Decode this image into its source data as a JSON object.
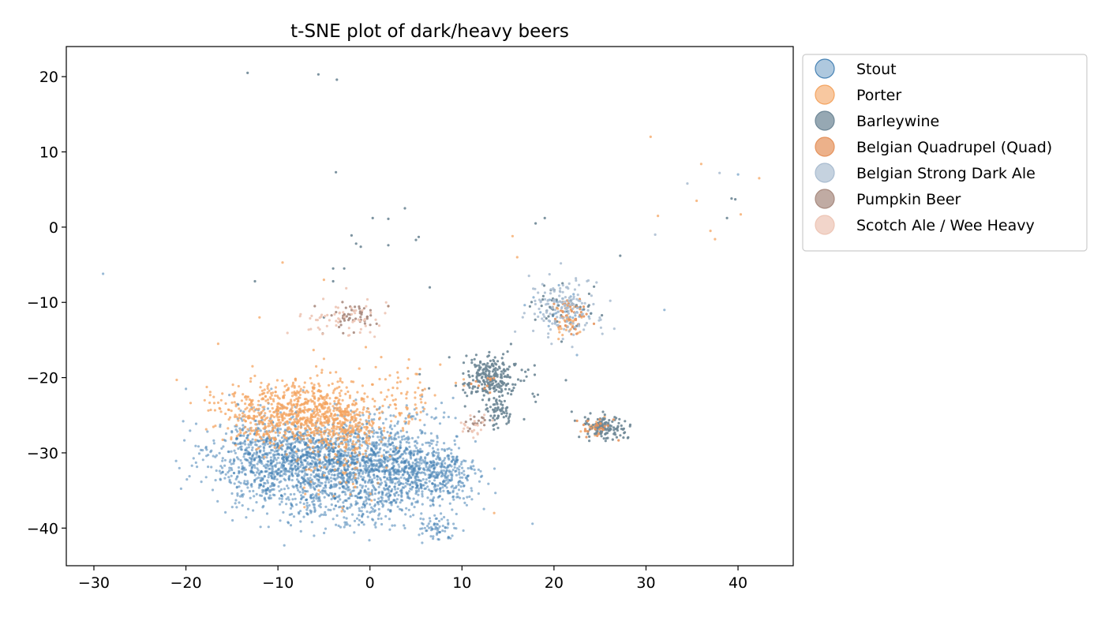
{
  "chart_data": {
    "type": "scatter",
    "title": "t-SNE plot of dark/heavy beers",
    "xlabel": "",
    "ylabel": "",
    "xlim": [
      -33,
      46
    ],
    "ylim": [
      -45,
      24
    ],
    "xticks": [
      -30,
      -20,
      -10,
      0,
      10,
      20,
      30,
      40
    ],
    "yticks": [
      20,
      10,
      0,
      -10,
      -20,
      -30,
      -40
    ],
    "grid": false,
    "legend": "outside-top-right",
    "series": [
      {
        "name": "Stout",
        "color": "#4682b4",
        "alpha": 0.55,
        "clusters": [
          {
            "cx": -8,
            "cy": -31,
            "sx": 4.5,
            "sy": 2.5,
            "n": 750
          },
          {
            "cx": -3,
            "cy": -30,
            "sx": 4,
            "sy": 2.5,
            "n": 550
          },
          {
            "cx": 2,
            "cy": -32,
            "sx": 3,
            "sy": 2.5,
            "n": 450
          },
          {
            "cx": 7,
            "cy": -33,
            "sx": 2.5,
            "sy": 2,
            "n": 380
          },
          {
            "cx": -12,
            "cy": -30,
            "sx": 2.5,
            "sy": 3,
            "n": 250
          },
          {
            "cx": 7,
            "cy": -40,
            "sx": 1,
            "sy": 0.8,
            "n": 60
          },
          {
            "cx": -4,
            "cy": -35,
            "sx": 5,
            "sy": 2.5,
            "n": 280
          },
          {
            "cx": -1,
            "cy": -37,
            "sx": 5,
            "sy": 1.8,
            "n": 150
          },
          {
            "cx": 21,
            "cy": -11,
            "sx": 1.5,
            "sy": 1.3,
            "n": 40
          },
          {
            "cx": 5,
            "cy": -26,
            "sx": 2.5,
            "sy": 2,
            "n": 50
          }
        ],
        "points": [
          [
            -29,
            -6.2
          ],
          [
            32,
            -11
          ],
          [
            40,
            7
          ],
          [
            22.5,
            -17
          ],
          [
            -20,
            -21.5
          ],
          [
            -20.3,
            -25.8
          ],
          [
            -13,
            -36
          ]
        ]
      },
      {
        "name": "Porter",
        "color": "#f4a460",
        "alpha": 0.75,
        "clusters": [
          {
            "cx": -9,
            "cy": -25,
            "sx": 3,
            "sy": 2,
            "n": 450
          },
          {
            "cx": -3,
            "cy": -26,
            "sx": 2,
            "sy": 1.8,
            "n": 280
          },
          {
            "cx": -6,
            "cy": -24,
            "sx": 4,
            "sy": 2,
            "n": 200
          },
          {
            "cx": 4.5,
            "cy": -24,
            "sx": 1.5,
            "sy": 1.5,
            "n": 40
          },
          {
            "cx": -4,
            "cy": -32,
            "sx": 3,
            "sy": 2.5,
            "n": 60
          },
          {
            "cx": -15,
            "cy": -24,
            "sx": 2,
            "sy": 2,
            "n": 40
          },
          {
            "cx": 21.5,
            "cy": -12.5,
            "sx": 0.8,
            "sy": 1.2,
            "n": 35
          },
          {
            "cx": 24.5,
            "cy": -26.5,
            "sx": 0.8,
            "sy": 0.6,
            "n": 20
          },
          {
            "cx": 0,
            "cy": -21,
            "sx": 4,
            "sy": 2,
            "n": 50
          }
        ],
        "points": [
          [
            30.5,
            12
          ],
          [
            36,
            8.4
          ],
          [
            42.3,
            6.5
          ],
          [
            35.5,
            3.5
          ],
          [
            31.3,
            1.5
          ],
          [
            40.3,
            1.7
          ],
          [
            37,
            -0.5
          ],
          [
            37.5,
            -1.6
          ],
          [
            15.5,
            -1.2
          ],
          [
            16,
            -4
          ],
          [
            -9.5,
            -4.7
          ],
          [
            -5,
            -7
          ],
          [
            -12,
            -12
          ],
          [
            -21,
            -20.3
          ],
          [
            -16.5,
            -15.5
          ],
          [
            -5,
            -17.5
          ],
          [
            13.5,
            -38
          ],
          [
            23,
            -12
          ],
          [
            2,
            -10.5
          ]
        ]
      },
      {
        "name": "Barleywine",
        "color": "#6e8796",
        "alpha": 0.9,
        "clusters": [
          {
            "cx": 13,
            "cy": -20,
            "sx": 1.3,
            "sy": 1.3,
            "n": 200
          },
          {
            "cx": 14,
            "cy": -24.5,
            "sx": 0.7,
            "sy": 1,
            "n": 60
          },
          {
            "cx": 25.5,
            "cy": -26.5,
            "sx": 1.2,
            "sy": 0.8,
            "n": 130
          },
          {
            "cx": 21,
            "cy": -10.5,
            "sx": 1.8,
            "sy": 1.6,
            "n": 40
          },
          {
            "cx": 14,
            "cy": -21,
            "sx": 3,
            "sy": 2.2,
            "n": 60
          }
        ],
        "points": [
          [
            -13.3,
            20.5
          ],
          [
            -5.6,
            20.3
          ],
          [
            -3.6,
            19.6
          ],
          [
            -3.7,
            7.3
          ],
          [
            0.3,
            1.2
          ],
          [
            2.0,
            1.1
          ],
          [
            3.8,
            2.5
          ],
          [
            -2.0,
            -1.1
          ],
          [
            -1.5,
            -2.2
          ],
          [
            -1.0,
            -2.6
          ],
          [
            2.0,
            -2.4
          ],
          [
            5.0,
            -1.7
          ],
          [
            5.3,
            -1.3
          ],
          [
            -4.0,
            -5.5
          ],
          [
            -2.8,
            -5.5
          ],
          [
            -12.5,
            -7.2
          ],
          [
            -4,
            -7.2
          ],
          [
            6.5,
            -8
          ],
          [
            -5,
            -12
          ],
          [
            19,
            1.2
          ],
          [
            18,
            0.5
          ],
          [
            39.3,
            3.8
          ],
          [
            39.7,
            3.7
          ],
          [
            38.8,
            1.2
          ],
          [
            27.2,
            -3.8
          ]
        ]
      },
      {
        "name": "Belgian Quadrupel (Quad)",
        "color": "#e5935d",
        "alpha": 0.9,
        "clusters": [
          {
            "cx": 21.8,
            "cy": -12,
            "sx": 0.9,
            "sy": 1.2,
            "n": 45
          },
          {
            "cx": 24.5,
            "cy": -26.5,
            "sx": 0.8,
            "sy": 0.7,
            "n": 25
          },
          {
            "cx": 12.5,
            "cy": -21,
            "sx": 0.8,
            "sy": 0.8,
            "n": 10
          }
        ],
        "points": []
      },
      {
        "name": "Belgian Strong Dark Ale",
        "color": "#a9bcd0",
        "alpha": 0.85,
        "clusters": [
          {
            "cx": 21,
            "cy": -10,
            "sx": 1.8,
            "sy": 1.8,
            "n": 90
          },
          {
            "cx": 22,
            "cy": -12,
            "sx": 2.5,
            "sy": 2.2,
            "n": 50
          }
        ],
        "points": [
          [
            34.5,
            5.8
          ],
          [
            38,
            7.2
          ],
          [
            31,
            -1
          ]
        ]
      },
      {
        "name": "Pumpkin Beer",
        "color": "#a88b80",
        "alpha": 0.9,
        "clusters": [
          {
            "cx": -2,
            "cy": -12,
            "sx": 1.2,
            "sy": 0.9,
            "n": 50
          },
          {
            "cx": 11.5,
            "cy": -26,
            "sx": 0.6,
            "sy": 0.7,
            "n": 15
          }
        ],
        "points": [
          [
            -6,
            -10.5
          ],
          [
            2,
            -10.5
          ]
        ]
      },
      {
        "name": "Scotch Ale / Wee Heavy",
        "color": "#edc5b5",
        "alpha": 0.9,
        "clusters": [
          {
            "cx": -3,
            "cy": -12,
            "sx": 2.5,
            "sy": 1.3,
            "n": 60
          },
          {
            "cx": 11.5,
            "cy": -26.5,
            "sx": 0.8,
            "sy": 0.8,
            "n": 20
          }
        ],
        "points": []
      }
    ]
  }
}
